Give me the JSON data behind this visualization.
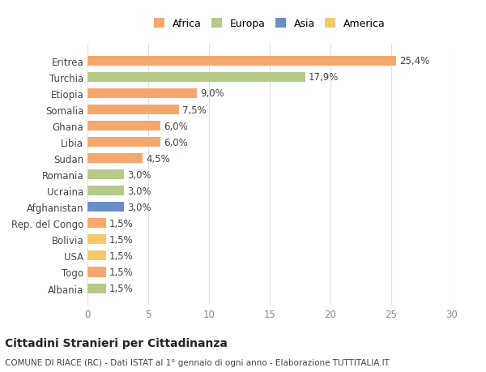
{
  "categories": [
    "Albania",
    "Togo",
    "USA",
    "Bolivia",
    "Rep. del Congo",
    "Afghanistan",
    "Ucraina",
    "Romania",
    "Sudan",
    "Libia",
    "Ghana",
    "Somalia",
    "Etiopia",
    "Turchia",
    "Eritrea"
  ],
  "values": [
    1.5,
    1.5,
    1.5,
    1.5,
    1.5,
    3.0,
    3.0,
    3.0,
    4.5,
    6.0,
    6.0,
    7.5,
    9.0,
    17.9,
    25.4
  ],
  "labels": [
    "1,5%",
    "1,5%",
    "1,5%",
    "1,5%",
    "1,5%",
    "3,0%",
    "3,0%",
    "3,0%",
    "4,5%",
    "6,0%",
    "6,0%",
    "7,5%",
    "9,0%",
    "17,9%",
    "25,4%"
  ],
  "colors": [
    "#b5c989",
    "#f5a86e",
    "#f5c86e",
    "#f5c86e",
    "#f5a86e",
    "#6b8fc4",
    "#b5c989",
    "#b5c989",
    "#f5a86e",
    "#f5a86e",
    "#f5a86e",
    "#f5a86e",
    "#f5a86e",
    "#b5c989",
    "#f5a86e"
  ],
  "legend_labels": [
    "Africa",
    "Europa",
    "Asia",
    "America"
  ],
  "legend_colors": [
    "#f5a86e",
    "#b5c989",
    "#6b8fc4",
    "#f5c86e"
  ],
  "title": "Cittadini Stranieri per Cittadinanza",
  "subtitle": "COMUNE DI RIACE (RC) - Dati ISTAT al 1° gennaio di ogni anno - Elaborazione TUTTITALIA.IT",
  "xlim": [
    0,
    30
  ],
  "xticks": [
    0,
    5,
    10,
    15,
    20,
    25,
    30
  ],
  "background_color": "#ffffff",
  "grid_color": "#e0e0e0",
  "bar_height": 0.6
}
